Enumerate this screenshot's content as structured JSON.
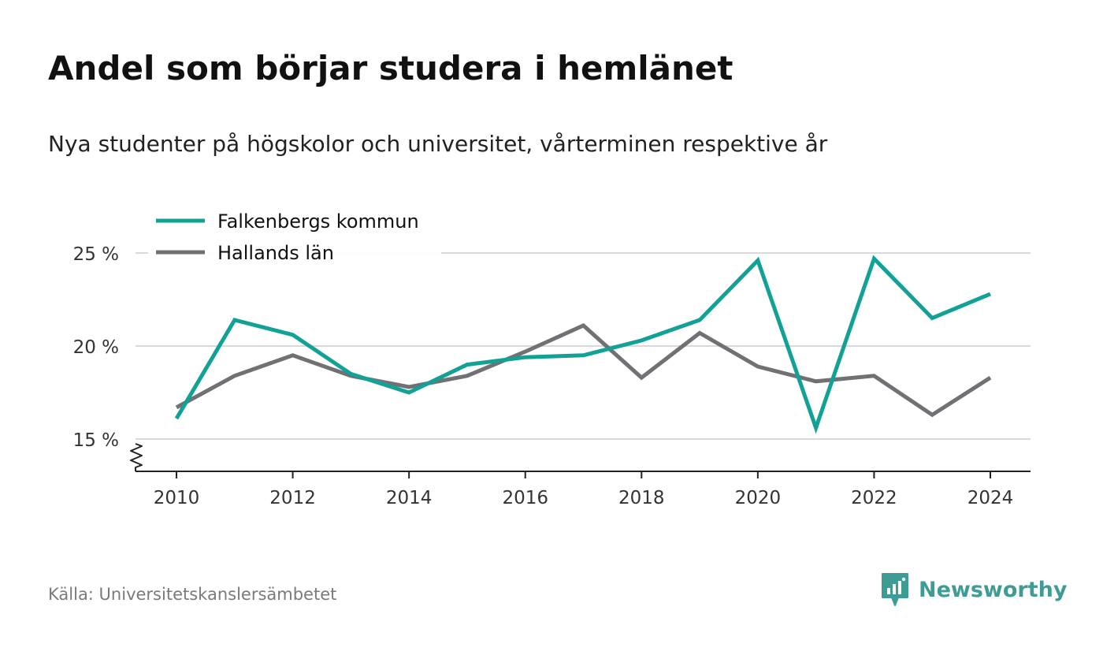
{
  "title": "Andel som börjar studera i hemlänet",
  "subtitle": "Nya studenter på högskolor och universitet, vårterminen respektive år",
  "source": "Källa: Universitetskanslersämbetet",
  "brand": {
    "name": "Newsworthy",
    "color": "#3f9c95",
    "icon": "newsworthy-logo-icon"
  },
  "chart_data": {
    "type": "line",
    "x": [
      2010,
      2011,
      2012,
      2013,
      2014,
      2015,
      2016,
      2017,
      2018,
      2019,
      2020,
      2021,
      2022,
      2023,
      2024
    ],
    "x_ticks": [
      2010,
      2012,
      2014,
      2016,
      2018,
      2020,
      2022,
      2024
    ],
    "y_ticks": [
      15,
      20,
      25
    ],
    "y_tick_labels": [
      "15 %",
      "20 %",
      "25 %"
    ],
    "ylim": [
      13.3,
      25.3
    ],
    "y_axis_break": true,
    "grid": true,
    "legend_position": "top-left",
    "series": [
      {
        "name": "Falkenbergs kommun",
        "color": "#12a195",
        "values": [
          16.1,
          21.4,
          20.6,
          18.5,
          17.5,
          19.0,
          19.4,
          19.5,
          20.3,
          21.4,
          24.6,
          15.6,
          24.7,
          21.5,
          22.8
        ]
      },
      {
        "name": "Hallands län",
        "color": "#707075",
        "values": [
          16.7,
          18.4,
          19.5,
          18.4,
          17.8,
          18.4,
          19.7,
          21.1,
          18.3,
          20.7,
          18.9,
          18.1,
          18.4,
          16.3,
          18.3
        ]
      }
    ]
  }
}
